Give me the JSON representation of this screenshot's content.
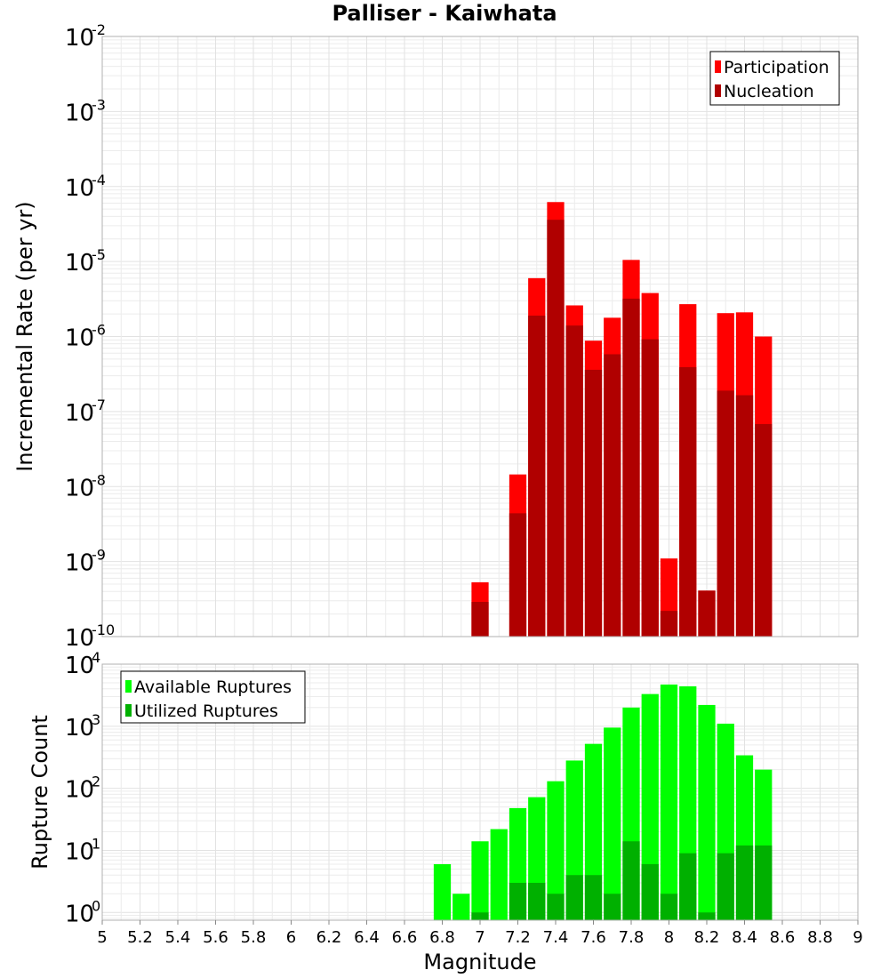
{
  "title": "Palliser - Kaiwhata",
  "xlabel": "Magnitude",
  "x_ticks": [
    "5",
    "5.2",
    "5.4",
    "5.6",
    "5.8",
    "6",
    "6.2",
    "6.4",
    "6.6",
    "6.8",
    "7",
    "7.2",
    "7.4",
    "7.6",
    "7.8",
    "8",
    "8.2",
    "8.4",
    "8.6",
    "8.8",
    "9"
  ],
  "chart_data": [
    {
      "type": "bar",
      "ylabel": "Incremental Rate (per yr)",
      "yscale": "log",
      "xlim": [
        5,
        9
      ],
      "ylim": [
        1e-10,
        0.01
      ],
      "y_tick_exponents": [
        "-2",
        "-3",
        "-4",
        "-5",
        "-6",
        "-7",
        "-8",
        "-9",
        "-10"
      ],
      "legend_position": "top-right",
      "bin_width": 0.1,
      "x": [
        7.0,
        7.2,
        7.3,
        7.4,
        7.5,
        7.6,
        7.7,
        7.8,
        7.9,
        8.0,
        8.1,
        8.2,
        8.3,
        8.4,
        8.5
      ],
      "series": [
        {
          "name": "Participation",
          "color": "#ff0000",
          "values": [
            5.3e-10,
            1.45e-08,
            6e-06,
            6.2e-05,
            2.6e-06,
            8.8e-07,
            1.78e-06,
            1.05e-05,
            3.8e-06,
            1.1e-09,
            2.7e-06,
            4.1e-10,
            2.05e-06,
            2.1e-06,
            1e-06
          ]
        },
        {
          "name": "Nucleation",
          "color": "#b00000",
          "values": [
            2.9e-10,
            4.4e-09,
            1.9e-06,
            3.6e-05,
            1.4e-06,
            3.6e-07,
            5.8e-07,
            3.2e-06,
            9.2e-07,
            2.2e-10,
            3.9e-07,
            4.1e-10,
            1.9e-07,
            1.65e-07,
            6.8e-08
          ]
        }
      ]
    },
    {
      "type": "bar",
      "ylabel": "Rupture Count",
      "yscale": "log",
      "xlim": [
        5,
        9
      ],
      "ylim": [
        0.75,
        10000
      ],
      "y_tick_exponents": [
        "4",
        "3",
        "2",
        "1",
        "0"
      ],
      "legend_position": "top-left",
      "bin_width": 0.1,
      "x": [
        6.8,
        6.9,
        7.0,
        7.1,
        7.2,
        7.3,
        7.4,
        7.5,
        7.6,
        7.7,
        7.8,
        7.9,
        8.0,
        8.1,
        8.2,
        8.3,
        8.4,
        8.5
      ],
      "series": [
        {
          "name": "Available Ruptures",
          "color": "#00ff00",
          "values": [
            6,
            2,
            14,
            22,
            48,
            72,
            130,
            280,
            520,
            950,
            2000,
            3300,
            4700,
            4400,
            2200,
            1100,
            340,
            200
          ]
        },
        {
          "name": "Utilized Ruptures",
          "color": "#00b000",
          "values": [
            0,
            0,
            1,
            0,
            3,
            3,
            2,
            4,
            4,
            2,
            14,
            6,
            2,
            9,
            1,
            9,
            12,
            12
          ]
        }
      ]
    }
  ]
}
